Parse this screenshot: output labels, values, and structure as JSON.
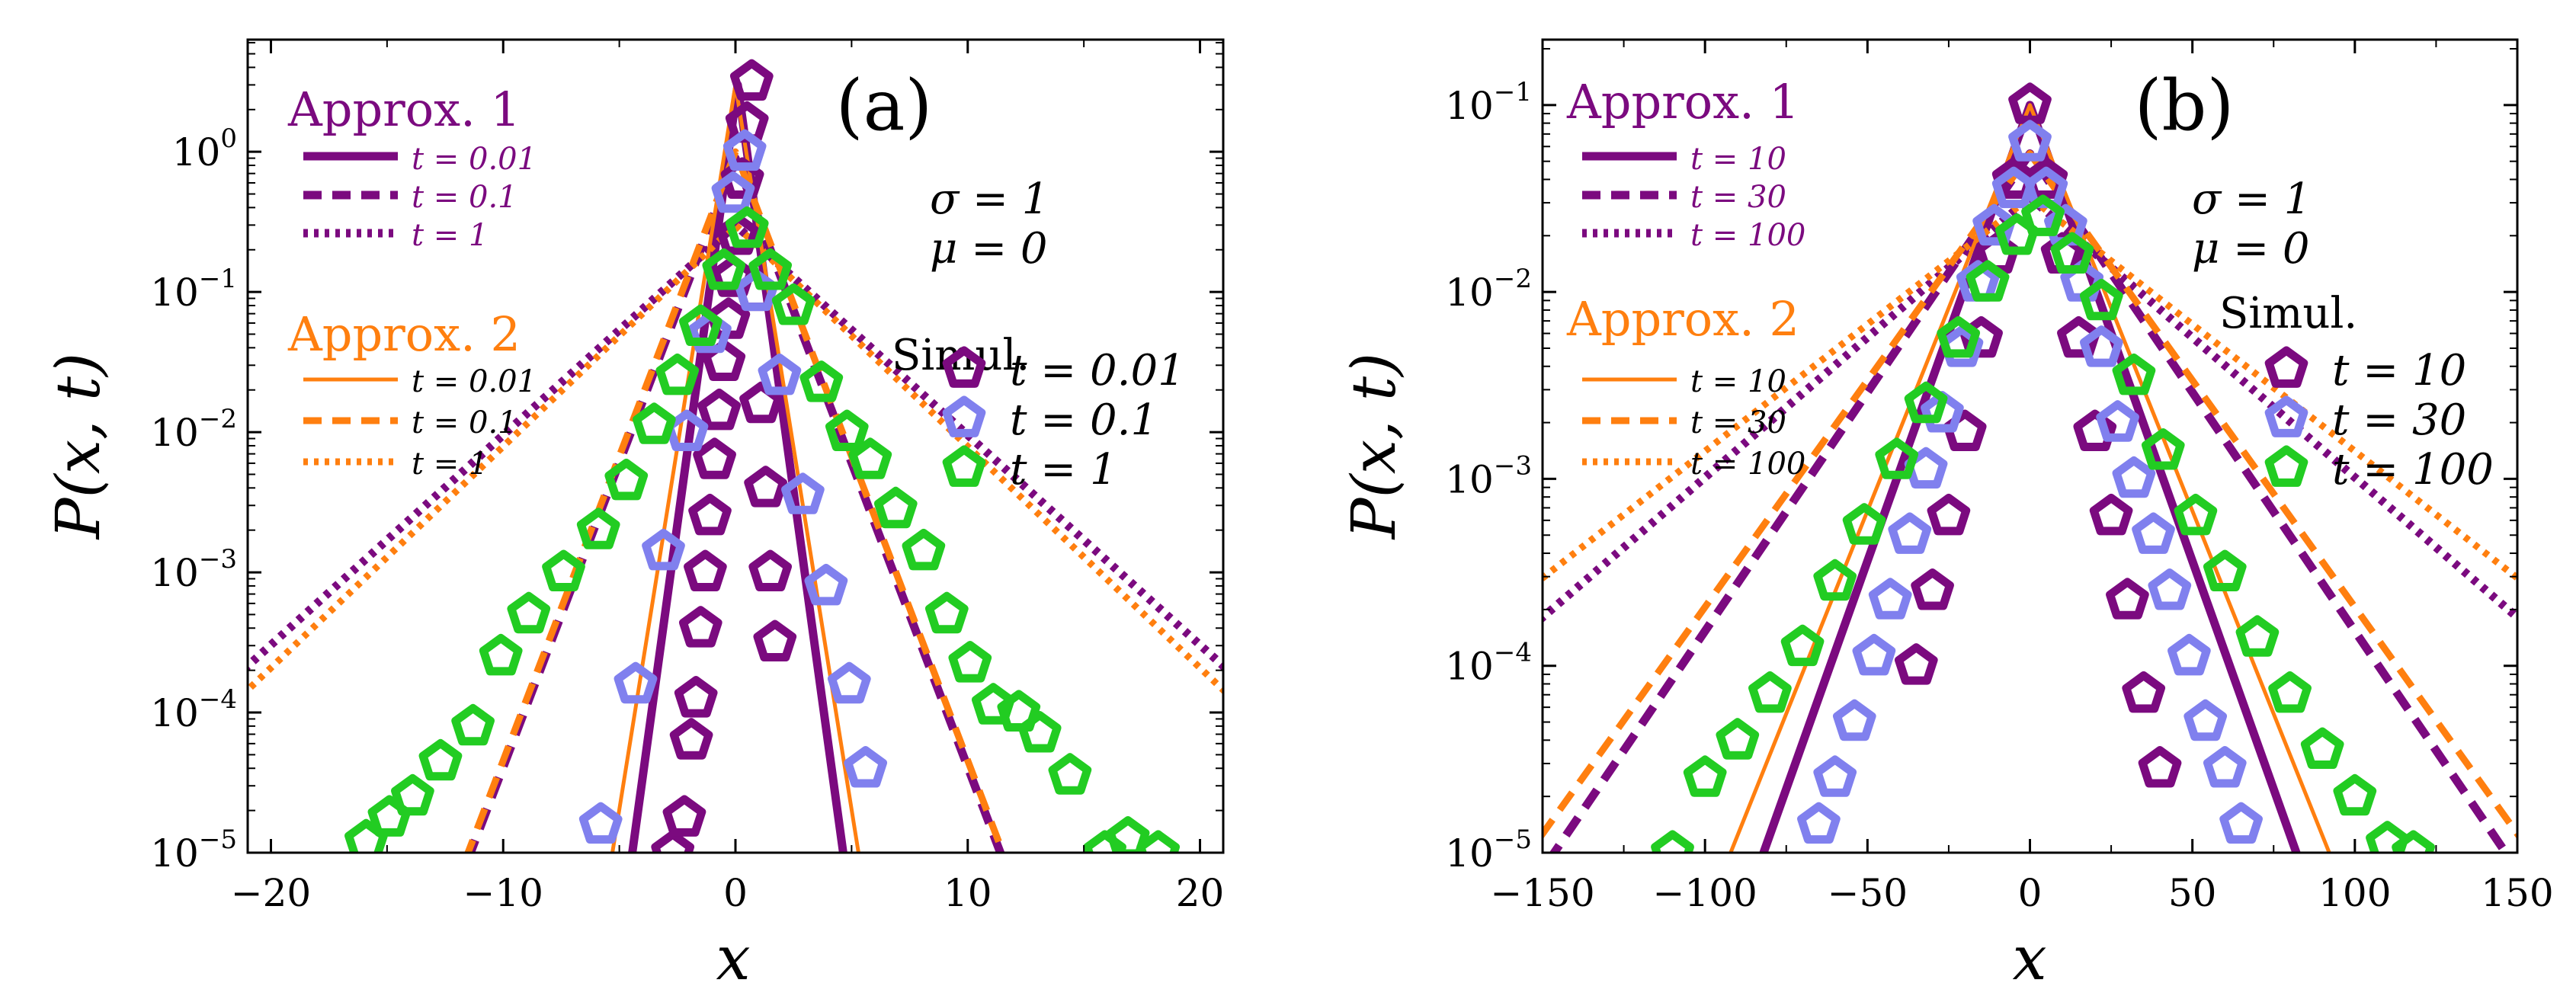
{
  "colors": {
    "purple": "#7b0a7f",
    "orange": "#ff7f0f",
    "lavender": "#8080ee",
    "green": "#22cc22",
    "axis": "#000000"
  },
  "chart_data": [
    {
      "type": "line",
      "panel_label": "(a)",
      "xlabel": "x",
      "ylabel": "P(x, t)",
      "xlim": [
        -21,
        21
      ],
      "ylim_log10": [
        -5,
        0.8
      ],
      "xticks": [
        -20,
        -10,
        0,
        10,
        20
      ],
      "xtick_labels": [
        "−20",
        "−10",
        "0",
        "10",
        "20"
      ],
      "yticks_log10": [
        -5,
        -4,
        -3,
        -2,
        -1,
        0
      ],
      "params": [
        "σ = 1",
        "μ = 0"
      ],
      "approx1": {
        "title": "Approx. 1",
        "color": "purple",
        "series": [
          {
            "label": "t = 0.01",
            "style": "solid",
            "peak": 3.0,
            "peak_x": 0.1,
            "scale": 0.36
          },
          {
            "label": "t = 0.1",
            "style": "dashed",
            "peak": 0.9,
            "peak_x": 0.0,
            "scale": 1.0
          },
          {
            "label": "t = 1",
            "style": "dotted",
            "peak": 0.3,
            "peak_x": 0.0,
            "scale": 2.9
          }
        ]
      },
      "approx2": {
        "title": "Approx. 2",
        "color": "orange",
        "series": [
          {
            "label": "t = 0.01",
            "style": "solid",
            "peak": 3.0,
            "peak_x": 0.0,
            "scale": 0.42
          },
          {
            "label": "t = 0.1",
            "style": "dashed",
            "peak": 1.0,
            "peak_x": 0.0,
            "scale": 1.0
          },
          {
            "label": "t = 1",
            "style": "dotted",
            "peak": 0.3,
            "peak_x": 0.0,
            "scale": 2.75
          }
        ]
      },
      "simul": {
        "title": "Simul.",
        "series": [
          {
            "label": "t = 0.01",
            "color": "purple",
            "x": [
              -2.7,
              -2.2,
              -1.9,
              -1.7,
              -1.5,
              -1.3,
              -1.1,
              -0.9,
              -0.7,
              -0.5,
              -0.3,
              -0.1,
              0.1,
              0.3,
              0.5,
              0.7,
              0.9,
              1.1,
              1.3,
              1.5,
              1.7
            ],
            "y": [
              -5.0,
              -4.75,
              -4.2,
              -3.9,
              -3.4,
              -3.0,
              -2.6,
              -2.2,
              -1.85,
              -1.5,
              -1.2,
              -0.9,
              -0.6,
              -0.2,
              0.2,
              0.5,
              -1.0,
              -1.8,
              -2.4,
              -3.0,
              -3.5
            ]
          },
          {
            "label": "t = 0.1",
            "color": "lavender",
            "x": [
              -5.8,
              -4.3,
              -3.1,
              -2.1,
              -1.1,
              -0.1,
              0.4,
              0.9,
              1.9,
              2.9,
              3.9,
              4.9,
              5.6
            ],
            "y": [
              -4.8,
              -3.8,
              -2.85,
              -2.0,
              -1.3,
              -0.3,
              0.0,
              -1.0,
              -1.6,
              -2.45,
              -3.1,
              -3.8,
              -4.4
            ]
          },
          {
            "label": "t = 1",
            "color": "green",
            "x": [
              -15.9,
              -14.9,
              -13.9,
              -12.7,
              -11.3,
              -10.1,
              -8.9,
              -7.4,
              -5.9,
              -4.7,
              -3.5,
              -2.5,
              -1.5,
              -0.5,
              0.5,
              1.5,
              2.5,
              3.7,
              4.8,
              5.8,
              6.9,
              8.1,
              9.1,
              10.1,
              11.1,
              12.2,
              13.1,
              14.4,
              15.9,
              16.9,
              18.2
            ],
            "y": [
              -4.92,
              -4.75,
              -4.6,
              -4.35,
              -4.1,
              -3.6,
              -3.3,
              -3.0,
              -2.7,
              -2.35,
              -1.95,
              -1.6,
              -1.25,
              -0.85,
              -0.55,
              -0.85,
              -1.1,
              -1.65,
              -2.0,
              -2.2,
              -2.55,
              -2.85,
              -3.3,
              -3.65,
              -3.95,
              -4.0,
              -4.15,
              -4.45,
              -5.0,
              -4.9,
              -5.0
            ]
          }
        ]
      }
    },
    {
      "type": "line",
      "panel_label": "(b)",
      "xlabel": "x",
      "ylabel": "P(x, t)",
      "xlim": [
        -150,
        150
      ],
      "ylim_log10": [
        -5,
        -0.65
      ],
      "xticks": [
        -150,
        -100,
        -50,
        0,
        50,
        100,
        150
      ],
      "xtick_labels": [
        "−150",
        "−100",
        "−50",
        "0",
        "50",
        "100",
        "150"
      ],
      "yticks_log10": [
        -5,
        -4,
        -3,
        -2,
        -1
      ],
      "params": [
        "σ = 1",
        "μ = 0"
      ],
      "approx1": {
        "title": "Approx. 1",
        "color": "purple",
        "series": [
          {
            "label": "t = 10",
            "style": "solid",
            "peak": 0.1,
            "peak_x": 0.0,
            "scale": 8.9
          },
          {
            "label": "t = 30",
            "style": "dashed",
            "peak": 0.055,
            "peak_x": 0.0,
            "scale": 17.0
          },
          {
            "label": "t = 100",
            "style": "dotted",
            "peak": 0.032,
            "peak_x": 0.0,
            "scale": 29.0
          }
        ]
      },
      "approx2": {
        "title": "Approx. 2",
        "color": "orange",
        "series": [
          {
            "label": "t = 10",
            "style": "solid",
            "peak": 0.1,
            "peak_x": 0.0,
            "scale": 10.0
          },
          {
            "label": "t = 30",
            "style": "dashed",
            "peak": 0.055,
            "peak_x": 0.0,
            "scale": 17.9
          },
          {
            "label": "t = 100",
            "style": "dotted",
            "peak": 0.032,
            "peak_x": 0.0,
            "scale": 32.0
          }
        ]
      },
      "simul": {
        "title": "Simul.",
        "series": [
          {
            "label": "t = 10",
            "color": "purple",
            "x": [
              -35,
              -30,
              -25,
              -20,
              -15,
              -10,
              -5,
              0,
              5,
              10,
              15,
              20,
              25,
              30,
              35,
              40
            ],
            "y": [
              -4.0,
              -3.6,
              -3.2,
              -2.75,
              -2.25,
              -1.8,
              -1.4,
              -1.0,
              -1.4,
              -1.8,
              -2.25,
              -2.75,
              -3.2,
              -3.65,
              -4.15,
              -4.55
            ]
          },
          {
            "label": "t = 30",
            "color": "lavender",
            "x": [
              -65,
              -60,
              -54,
              -48,
              -43,
              -37,
              -32,
              -27,
              -21,
              -16,
              -11,
              -5,
              0,
              5,
              11,
              16,
              22,
              27,
              32,
              38,
              43,
              49,
              54,
              60,
              65
            ],
            "y": [
              -4.85,
              -4.6,
              -4.3,
              -3.95,
              -3.65,
              -3.3,
              -2.95,
              -2.65,
              -2.3,
              -1.95,
              -1.65,
              -1.45,
              -1.2,
              -1.45,
              -1.65,
              -1.95,
              -2.3,
              -2.7,
              -3.0,
              -3.3,
              -3.6,
              -3.95,
              -4.3,
              -4.55,
              -4.85
            ]
          },
          {
            "label": "t = 100",
            "color": "green",
            "x": [
              -110,
              -100,
              -90,
              -80,
              -70,
              -60,
              -51,
              -41,
              -32,
              -22,
              -13,
              -4,
              4,
              13,
              22,
              32,
              41,
              51,
              60,
              70,
              80,
              90,
              100,
              110,
              118
            ],
            "y": [
              -5.0,
              -4.6,
              -4.4,
              -4.15,
              -3.9,
              -3.55,
              -3.25,
              -2.9,
              -2.6,
              -2.25,
              -1.95,
              -1.7,
              -1.6,
              -1.8,
              -2.05,
              -2.45,
              -2.85,
              -3.2,
              -3.5,
              -3.85,
              -4.15,
              -4.45,
              -4.7,
              -4.95,
              -5.0
            ]
          }
        ]
      }
    }
  ]
}
